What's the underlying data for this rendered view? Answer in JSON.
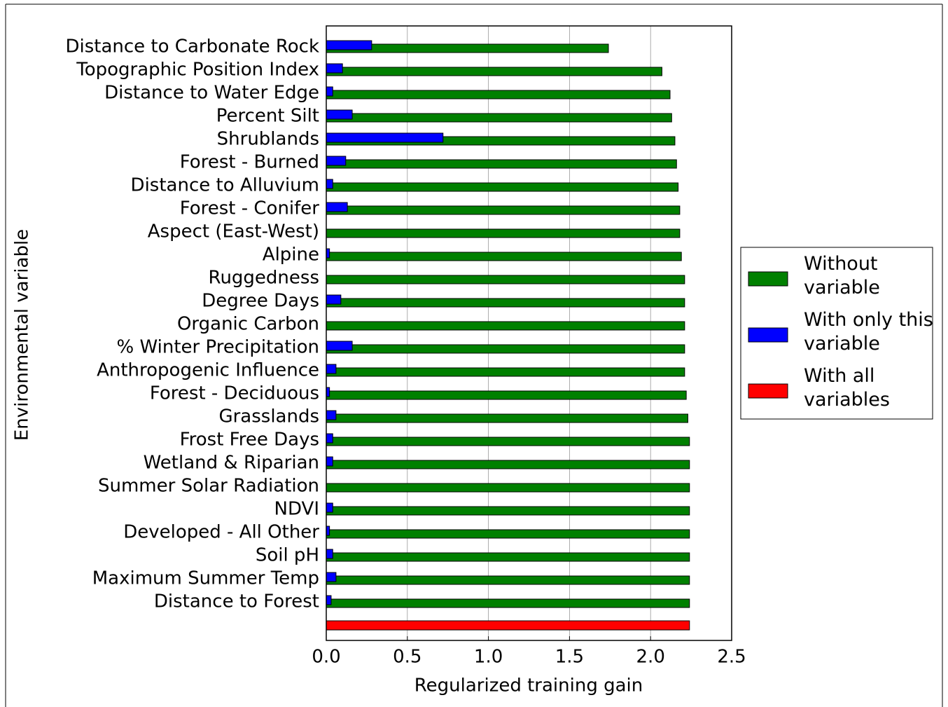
{
  "chart_data": {
    "type": "barh",
    "x_label": "Regularized training gain",
    "y_label": "Environmental variable",
    "categories": [
      "Distance to Carbonate Rock",
      "Topographic Position Index",
      "Distance to Water Edge",
      "Percent Silt",
      "Shrublands",
      "Forest - Burned",
      "Distance to Alluvium",
      "Forest - Conifer",
      "Aspect (East-West)",
      "Alpine",
      "Ruggedness",
      "Degree Days",
      "Organic Carbon",
      "% Winter Precipitation",
      "Anthropogenic Influence",
      "Forest - Deciduous",
      "Grasslands",
      "Frost Free Days",
      "Wetland & Riparian",
      "Summer Solar Radiation",
      "NDVI",
      "Developed - All Other",
      "Soil pH",
      "Maximum Summer Temp",
      "Distance to Forest",
      null
    ],
    "series": [
      {
        "name": "Without variable",
        "color": "#008000",
        "values": [
          1.74,
          2.07,
          2.12,
          2.13,
          2.15,
          2.16,
          2.17,
          2.18,
          2.18,
          2.19,
          2.21,
          2.21,
          2.21,
          2.21,
          2.21,
          2.22,
          2.23,
          2.24,
          2.24,
          2.24,
          2.24,
          2.24,
          2.24,
          2.24,
          2.24,
          null
        ]
      },
      {
        "name": "With only this variable",
        "color": "#0000ff",
        "values": [
          0.28,
          0.1,
          0.04,
          0.16,
          0.72,
          0.12,
          0.04,
          0.13,
          0,
          0.02,
          0,
          0.09,
          0,
          0.16,
          0.06,
          0.02,
          0.06,
          0.04,
          0.04,
          0,
          0.04,
          0.02,
          0.04,
          0.06,
          0.03,
          null
        ]
      },
      {
        "name": "With all variables",
        "color": "#ff0000",
        "values": [
          null,
          null,
          null,
          null,
          null,
          null,
          null,
          null,
          null,
          null,
          null,
          null,
          null,
          null,
          null,
          null,
          null,
          null,
          null,
          null,
          null,
          null,
          null,
          null,
          null,
          2.24
        ]
      }
    ],
    "xlim": [
      0,
      2.5
    ],
    "xticks": [
      {
        "value": 0,
        "label": "0.0"
      },
      0.5,
      {
        "value": 1,
        "label": "1.0"
      },
      1.5,
      {
        "value": 2,
        "label": "2.0"
      },
      2.5
    ],
    "grid": true,
    "legend": "right"
  }
}
